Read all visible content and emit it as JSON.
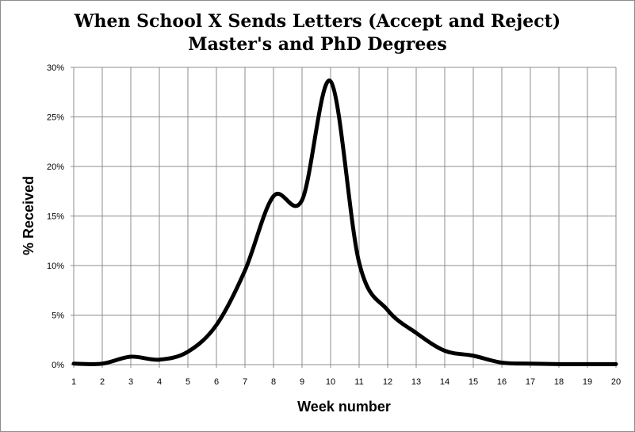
{
  "chart_data": {
    "type": "line",
    "title": "When School X Sends Letters (Accept and Reject)",
    "subtitle": "Master's and PhD Degrees",
    "xlabel": "Week number",
    "ylabel": "% Received",
    "x_ticks": [
      "1",
      "2",
      "3",
      "4",
      "5",
      "6",
      "7",
      "8",
      "9",
      "10",
      "11",
      "12",
      "13",
      "14",
      "15",
      "16",
      "17",
      "18",
      "19",
      "20"
    ],
    "y_ticks": [
      "0%",
      "5%",
      "10%",
      "15%",
      "20%",
      "25%",
      "30%"
    ],
    "xlim": [
      1,
      20
    ],
    "ylim": [
      0,
      30
    ],
    "grid": true,
    "smooth": true,
    "series": [
      {
        "color": "#000000",
        "x": [
          1,
          2,
          3,
          4,
          5,
          6,
          7,
          8,
          9,
          10,
          11,
          12,
          13,
          14,
          15,
          16,
          17,
          18,
          19,
          20
        ],
        "y": [
          0.1,
          0.1,
          0.8,
          0.5,
          1.3,
          4.0,
          9.5,
          17.0,
          16.6,
          28.6,
          10.3,
          5.5,
          3.2,
          1.4,
          0.9,
          0.2,
          0.1,
          0.05,
          0.05,
          0.05
        ]
      }
    ]
  }
}
